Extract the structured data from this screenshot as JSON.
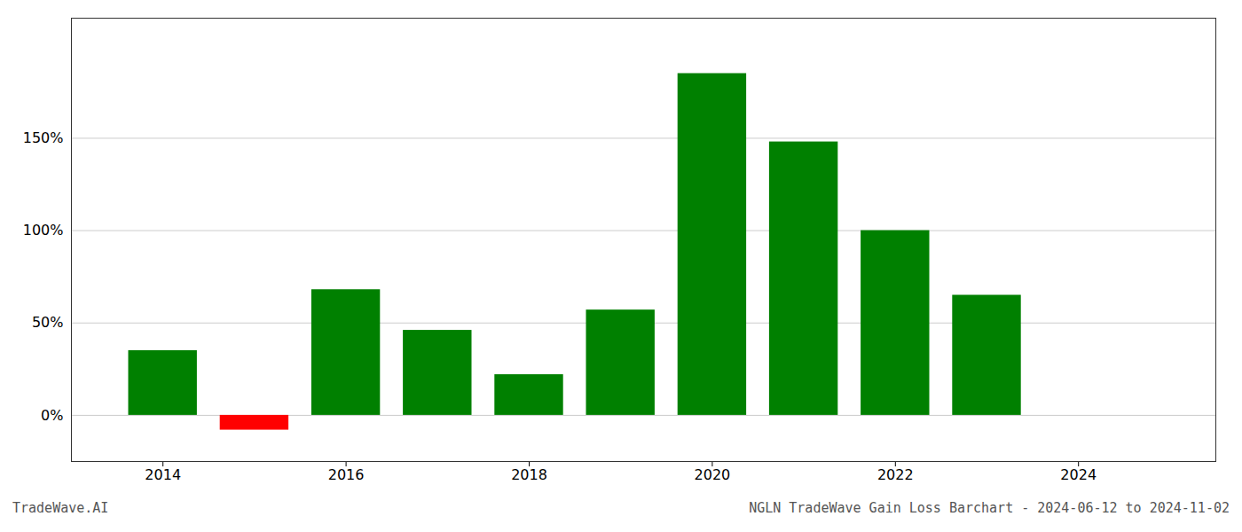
{
  "chart_data": {
    "type": "bar",
    "title": "NGLN TradeWave Gain Loss Barchart - 2024-06-12 to 2024-11-02",
    "annotations": [
      "TradeWave.AI"
    ],
    "x": [
      2014,
      2015,
      2016,
      2017,
      2018,
      2019,
      2020,
      2021,
      2022,
      2023
    ],
    "values": [
      35,
      -8,
      68,
      46,
      22,
      57,
      185,
      148,
      100,
      65
    ],
    "colors": [
      "#008000",
      "#ff0000",
      "#008000",
      "#008000",
      "#008000",
      "#008000",
      "#008000",
      "#008000",
      "#008000",
      "#008000"
    ],
    "xlim": [
      2013.0,
      2025.5
    ],
    "xticks": [
      2014,
      2016,
      2018,
      2020,
      2022,
      2024
    ],
    "ylim": [
      -25,
      215
    ],
    "yticks": [
      {
        "value": 0,
        "label": "0%"
      },
      {
        "value": 50,
        "label": "50%"
      },
      {
        "value": 100,
        "label": "100%"
      },
      {
        "value": 150,
        "label": "150%"
      }
    ],
    "grid": "y"
  }
}
